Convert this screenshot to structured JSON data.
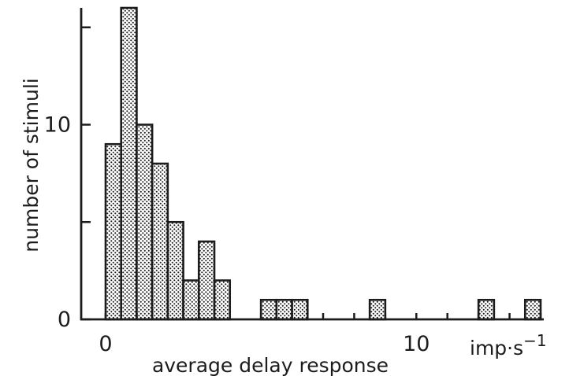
{
  "chart_data": {
    "type": "bar",
    "bin_width": 0.5,
    "bins": [
      {
        "x": 0.0,
        "count": 9
      },
      {
        "x": 0.5,
        "count": 16
      },
      {
        "x": 1.0,
        "count": 10
      },
      {
        "x": 1.5,
        "count": 8
      },
      {
        "x": 2.0,
        "count": 5
      },
      {
        "x": 2.5,
        "count": 2
      },
      {
        "x": 3.0,
        "count": 4
      },
      {
        "x": 3.5,
        "count": 2
      },
      {
        "x": 5.0,
        "count": 1
      },
      {
        "x": 5.5,
        "count": 1
      },
      {
        "x": 6.0,
        "count": 1
      },
      {
        "x": 8.5,
        "count": 1
      },
      {
        "x": 12.0,
        "count": 1
      },
      {
        "x": 13.5,
        "count": 1
      }
    ],
    "xlabel": "average delay response",
    "xunit": "imp·s",
    "xunit_exp": "−1",
    "ylabel": "number of stimuli",
    "xlim": [
      0,
      14
    ],
    "ylim": [
      0,
      16
    ],
    "x_ticks": [
      0,
      1,
      2,
      3,
      4,
      5,
      6,
      7,
      8,
      9,
      10,
      11,
      12,
      13,
      14
    ],
    "x_tick_labels": [
      {
        "value": 0,
        "label": "0"
      },
      {
        "value": 10,
        "label": "10"
      }
    ],
    "y_ticks": [
      0,
      5,
      10,
      15
    ],
    "y_tick_labels": [
      {
        "value": 0,
        "label": "0"
      },
      {
        "value": 10,
        "label": "10"
      }
    ],
    "grid": false,
    "fill_pattern": "stippled dots",
    "colors": {
      "ink": "#1c1c1c",
      "background": "#ffffff"
    }
  }
}
